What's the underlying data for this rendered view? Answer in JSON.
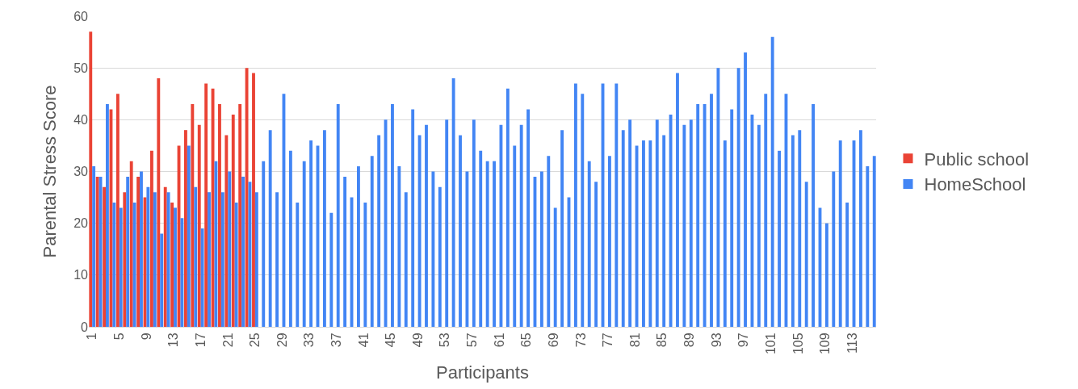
{
  "chart_data": {
    "type": "bar",
    "xlabel": "Participants",
    "ylabel": "Parental Stress Score",
    "categories": [
      "1",
      null,
      null,
      null,
      "5",
      null,
      null,
      null,
      "9",
      null,
      null,
      null,
      "13",
      null,
      null,
      null,
      "17",
      null,
      null,
      null,
      "21",
      null,
      null,
      null,
      "25",
      null,
      null,
      null,
      "29",
      null,
      null,
      null,
      "33",
      null,
      null,
      null,
      "37",
      null,
      null,
      null,
      "41",
      null,
      null,
      null,
      "45",
      null,
      null,
      null,
      "49",
      null,
      null,
      null,
      "53",
      null,
      null,
      null,
      "57",
      null,
      null,
      null,
      "61",
      null,
      null,
      null,
      "65",
      null,
      null,
      null,
      "69",
      null,
      null,
      null,
      "73",
      null,
      null,
      null,
      "77",
      null,
      null,
      null,
      "81",
      null,
      null,
      null,
      "85",
      null,
      null,
      null,
      "89",
      null,
      null,
      null,
      "93",
      null,
      null,
      null,
      "97",
      null,
      null,
      null,
      "101",
      null,
      null,
      null,
      "105",
      null,
      null,
      null,
      "109",
      null,
      null,
      null,
      "113",
      null,
      null,
      null
    ],
    "series": [
      {
        "name": "Public school",
        "color": "#ea4335",
        "values": [
          57,
          29,
          27,
          42,
          45,
          26,
          32,
          29,
          25,
          34,
          48,
          27,
          24,
          35,
          38,
          43,
          39,
          47,
          46,
          43,
          37,
          41,
          43,
          50,
          49,
          null,
          null,
          null,
          null,
          null,
          null,
          null,
          null,
          null,
          null,
          null,
          null,
          null,
          null,
          null,
          null,
          null,
          null,
          null,
          null,
          null,
          null,
          null,
          null,
          null,
          null,
          null,
          null,
          null,
          null,
          null,
          null,
          null,
          null,
          null,
          null,
          null,
          null,
          null,
          null,
          null,
          null,
          null,
          null,
          null,
          null,
          null,
          null,
          null,
          null,
          null,
          null,
          null,
          null,
          null,
          null,
          null,
          null,
          null,
          null,
          null,
          null,
          null,
          null,
          null,
          null,
          null,
          null,
          null,
          null,
          null,
          null,
          null,
          null,
          null,
          null,
          null,
          null,
          null,
          null,
          null,
          null,
          null,
          null,
          null,
          null,
          null,
          null,
          null,
          null,
          null
        ]
      },
      {
        "name": "HomeSchool",
        "color": "#4285f4",
        "values": [
          31,
          29,
          43,
          24,
          23,
          29,
          24,
          30,
          27,
          26,
          18,
          26,
          23,
          21,
          35,
          27,
          19,
          26,
          32,
          26,
          30,
          24,
          29,
          28,
          26,
          32,
          38,
          26,
          45,
          34,
          24,
          32,
          36,
          35,
          38,
          22,
          43,
          29,
          25,
          31,
          24,
          33,
          37,
          40,
          43,
          31,
          26,
          42,
          37,
          39,
          30,
          27,
          40,
          48,
          37,
          30,
          40,
          34,
          32,
          32,
          39,
          46,
          35,
          39,
          42,
          29,
          30,
          33,
          23,
          38,
          25,
          47,
          45,
          32,
          28,
          47,
          33,
          47,
          38,
          40,
          35,
          36,
          36,
          40,
          37,
          41,
          49,
          39,
          40,
          43,
          43,
          45,
          50,
          36,
          42,
          50,
          53,
          41,
          39,
          45,
          56,
          34,
          45,
          37,
          38,
          28,
          43,
          23,
          20,
          30,
          36,
          24,
          36,
          38,
          31,
          33
        ]
      }
    ],
    "ylim": [
      0,
      60
    ],
    "yticks": [
      0,
      10,
      20,
      30,
      40,
      50,
      60
    ],
    "grid": "y",
    "legend": "right"
  }
}
